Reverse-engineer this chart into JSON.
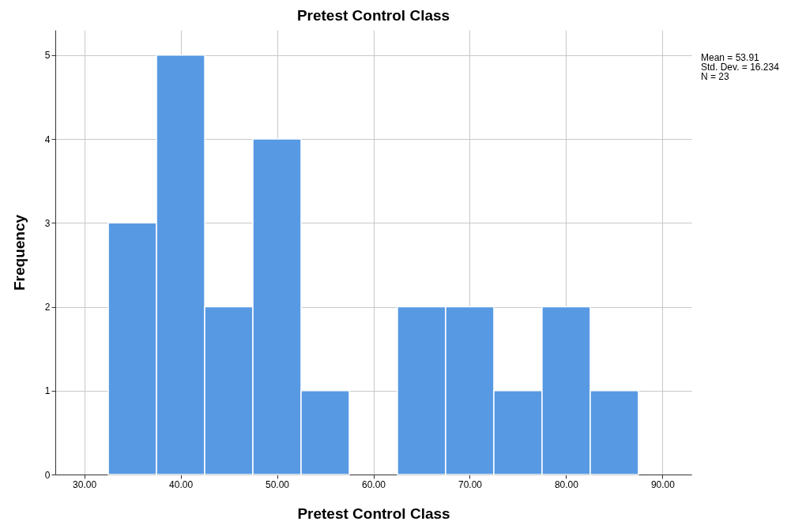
{
  "chart_data": {
    "type": "histogram",
    "title": "Pretest Control Class",
    "xlabel": "Pretest Control Class",
    "ylabel": "Frequency",
    "bins": [
      32.5,
      37.5,
      42.5,
      47.5,
      52.5,
      57.5,
      62.5,
      67.5,
      72.5,
      77.5,
      82.5,
      87.5
    ],
    "values": [
      3,
      5,
      2,
      4,
      1,
      0,
      2,
      2,
      1,
      2,
      1
    ],
    "color": "#5899e3",
    "xlim": [
      27,
      93
    ],
    "xticks": [
      {
        "value": 30,
        "label": "30.00"
      },
      {
        "value": 40,
        "label": "40.00"
      },
      {
        "value": 50,
        "label": "50.00"
      },
      {
        "value": 60,
        "label": "60.00"
      },
      {
        "value": 70,
        "label": "70.00"
      },
      {
        "value": 80,
        "label": "80.00"
      },
      {
        "value": 90,
        "label": "90.00"
      }
    ],
    "ylim": [
      0,
      5.3
    ],
    "yticks": [
      0,
      1,
      2,
      3,
      4,
      5
    ],
    "grid": true,
    "annotations": [
      "Mean = 53.91",
      "Std. Dev. = 16.234",
      "N = 23"
    ]
  }
}
